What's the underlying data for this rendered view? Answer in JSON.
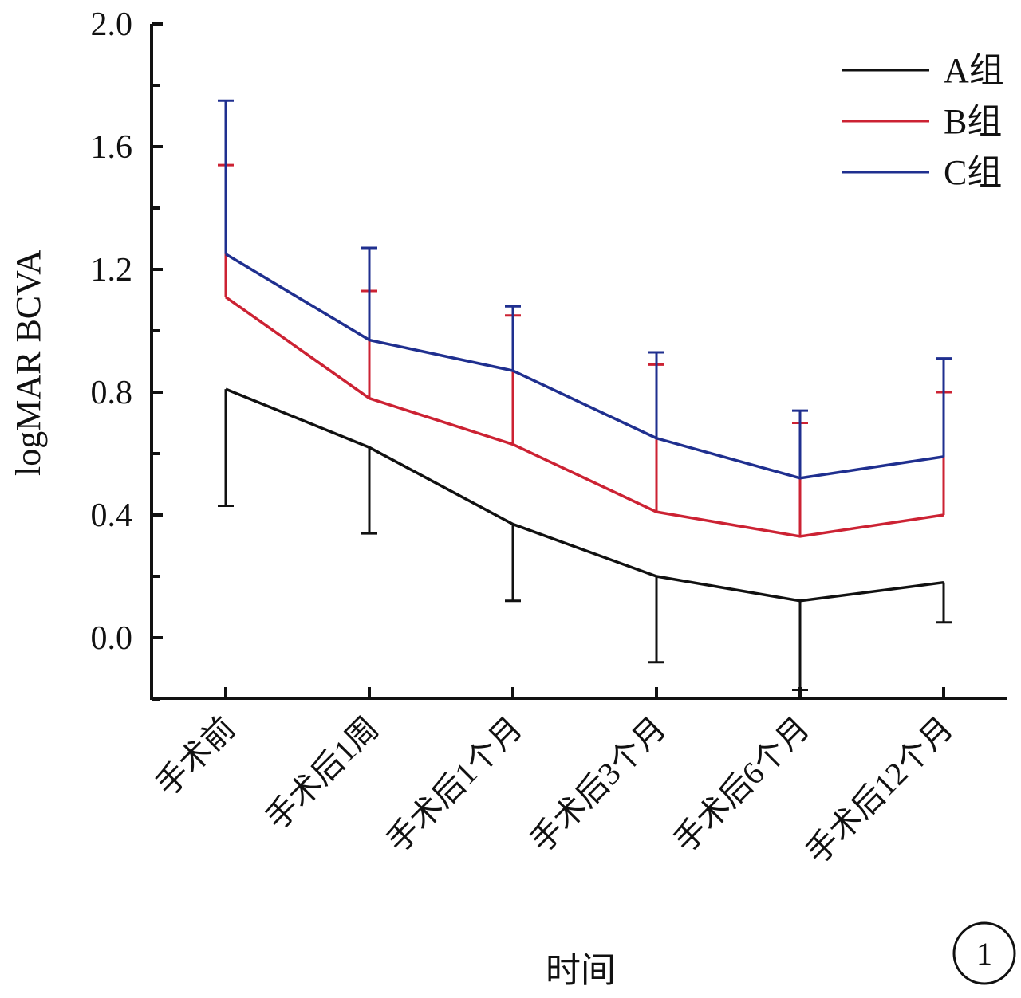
{
  "chart_data": {
    "type": "line",
    "ylabel": "logMAR BCVA",
    "xlabel": "时间",
    "ylim": [
      -0.2,
      2.0
    ],
    "yticks": [
      "0.0",
      "0.4",
      "0.8",
      "1.2",
      "1.6",
      "2.0"
    ],
    "categories": [
      "手术前",
      "手术后1周",
      "手术后1个月",
      "手术后3个月",
      "手术后6个月",
      "手术后12个月"
    ],
    "legend_position": "top-right",
    "series": [
      {
        "name": "A组",
        "color": "#111111",
        "values": [
          0.81,
          0.62,
          0.37,
          0.2,
          0.12,
          0.18
        ],
        "errors": [
          0.38,
          0.28,
          0.25,
          0.28,
          0.29,
          0.13
        ],
        "error_direction": "down"
      },
      {
        "name": "B组",
        "color": "#cc2233",
        "values": [
          1.11,
          0.78,
          0.63,
          0.41,
          0.33,
          0.4
        ],
        "errors": [
          0.43,
          0.35,
          0.42,
          0.48,
          0.37,
          0.4
        ],
        "error_direction": "up"
      },
      {
        "name": "C组",
        "color": "#1f2f8f",
        "values": [
          1.25,
          0.97,
          0.87,
          0.65,
          0.52,
          0.59
        ],
        "errors": [
          0.5,
          0.3,
          0.21,
          0.28,
          0.22,
          0.32
        ],
        "error_direction": "up"
      }
    ]
  },
  "panel_number": "1"
}
